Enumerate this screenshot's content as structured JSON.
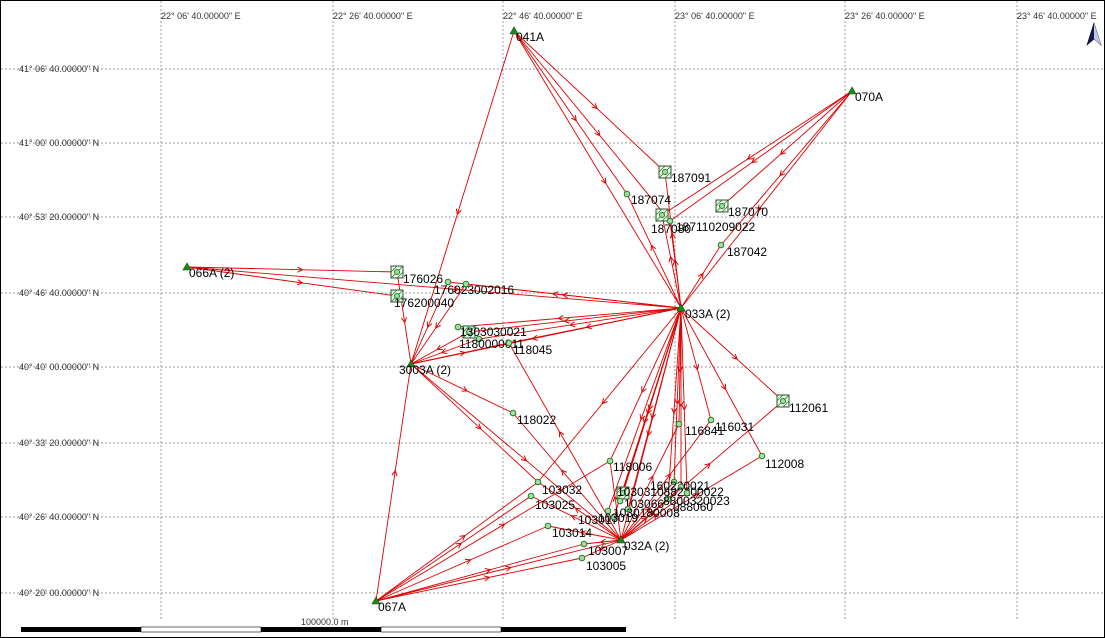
{
  "map": {
    "lon_labels": [
      "22° 06' 40.00000\" E",
      "22° 26' 40.00000\" E",
      "22° 46' 40.00000\" E",
      "23° 06' 40.00000\" E",
      "23° 26' 40.00000\" E",
      "23° 46' 40.00000\" E"
    ],
    "lat_labels": [
      "41° 06' 40.00000\" N",
      "41° 00' 00.00000\" N",
      "40° 53' 20.00000\" N",
      "40° 46' 40.00000\" N",
      "40° 40' 00.00000\" N",
      "40° 33' 20.00000\" N",
      "40° 26' 40.00000\" N",
      "40° 20' 00.00000\" N"
    ],
    "scale_label": "100000.0 m",
    "north_arrow": "north-arrow-icon",
    "colors": {
      "observation": "#e00000",
      "control": "#1c8a1c",
      "point": "#9fe09f",
      "grid": "#9a9a9a"
    }
  },
  "stations": [
    {
      "id": "041A",
      "label": "041A",
      "type": "control"
    },
    {
      "id": "070A",
      "label": "070A",
      "type": "control"
    },
    {
      "id": "066A",
      "label": "066A (2)",
      "type": "control"
    },
    {
      "id": "033A",
      "label": "033A (2)",
      "type": "control"
    },
    {
      "id": "031A",
      "label": "3003A (2)",
      "type": "control"
    },
    {
      "id": "032A",
      "label": "032A (2)",
      "type": "control"
    },
    {
      "id": "067A",
      "label": "067A",
      "type": "control"
    },
    {
      "id": "187091",
      "label": "187091",
      "type": "box"
    },
    {
      "id": "187070",
      "label": "187070",
      "type": "box"
    },
    {
      "id": "187074",
      "label": "187074",
      "type": "point"
    },
    {
      "id": "187080",
      "label": "187080",
      "type": "box"
    },
    {
      "id": "187022",
      "label": "187110209022",
      "type": "point"
    },
    {
      "id": "187042",
      "label": "187042",
      "type": "point"
    },
    {
      "id": "176026",
      "label": "176026",
      "type": "box"
    },
    {
      "id": "176200040",
      "label": "176200040",
      "type": "box"
    },
    {
      "id": "176020",
      "label": "176023002016",
      "type": "point"
    },
    {
      "id": "176016",
      "label": "",
      "type": "point"
    },
    {
      "id": "130021",
      "label": "1303030021",
      "type": "box"
    },
    {
      "id": "118011",
      "label": "1180000011",
      "type": "point"
    },
    {
      "id": "130x",
      "label": "",
      "type": "point"
    },
    {
      "id": "118045",
      "label": "118045",
      "type": "point"
    },
    {
      "id": "118022",
      "label": "118022",
      "type": "point"
    },
    {
      "id": "112061",
      "label": "112061",
      "type": "box"
    },
    {
      "id": "116841",
      "label": "116841",
      "type": "point"
    },
    {
      "id": "116031",
      "label": "116031",
      "type": "point"
    },
    {
      "id": "112008",
      "label": "112008",
      "type": "point"
    },
    {
      "id": "118006",
      "label": "118006",
      "type": "point"
    },
    {
      "id": "103031",
      "label": "103031",
      "type": "box"
    },
    {
      "id": "103032",
      "label": "103032",
      "type": "point"
    },
    {
      "id": "103025",
      "label": "103025",
      "type": "point"
    },
    {
      "id": "103066",
      "label": "103066",
      "type": "point"
    },
    {
      "id": "103017",
      "label": "103017",
      "type": "point"
    },
    {
      "id": "103019",
      "label": "103019",
      "type": "point"
    },
    {
      "id": "103008",
      "label": "1030180008",
      "type": "point"
    },
    {
      "id": "103014",
      "label": "103014",
      "type": "point"
    },
    {
      "id": "103007",
      "label": "103007",
      "type": "point"
    },
    {
      "id": "103005",
      "label": "103005",
      "type": "point"
    },
    {
      "id": "088060",
      "label": "088060",
      "type": "point"
    },
    {
      "id": "160021",
      "label": "160220021",
      "type": "point"
    },
    {
      "id": "088022",
      "label": "0882200022",
      "type": "point"
    },
    {
      "id": "088023",
      "label": "8800320023",
      "type": "point"
    }
  ],
  "observations": [
    [
      "041A",
      "187091"
    ],
    [
      "041A",
      "033A"
    ],
    [
      "041A",
      "187074"
    ],
    [
      "041A",
      "187022"
    ],
    [
      "041A",
      "031A"
    ],
    [
      "070A",
      "033A"
    ],
    [
      "070A",
      "187070"
    ],
    [
      "070A",
      "187080"
    ],
    [
      "070A",
      "187022"
    ],
    [
      "070A",
      "187042"
    ],
    [
      "066A",
      "176026"
    ],
    [
      "066A",
      "176200040"
    ],
    [
      "066A",
      "033A"
    ],
    [
      "176026",
      "031A"
    ],
    [
      "176020",
      "031A"
    ],
    [
      "176016",
      "031A"
    ],
    [
      "130021",
      "031A"
    ],
    [
      "118011",
      "031A"
    ],
    [
      "033A",
      "031A"
    ],
    [
      "033A",
      "176020"
    ],
    [
      "033A",
      "176016"
    ],
    [
      "033A",
      "130021"
    ],
    [
      "033A",
      "118011"
    ],
    [
      "033A",
      "118045"
    ],
    [
      "033A",
      "130x"
    ],
    [
      "033A",
      "187074"
    ],
    [
      "033A",
      "187080"
    ],
    [
      "033A",
      "187022"
    ],
    [
      "033A",
      "187042"
    ],
    [
      "033A",
      "187091"
    ],
    [
      "033A",
      "032A"
    ],
    [
      "033A",
      "112061"
    ],
    [
      "033A",
      "116841"
    ],
    [
      "033A",
      "116031"
    ],
    [
      "033A",
      "112008"
    ],
    [
      "033A",
      "118006"
    ],
    [
      "033A",
      "103031"
    ],
    [
      "033A",
      "103066"
    ],
    [
      "033A",
      "103017"
    ],
    [
      "033A",
      "103019"
    ],
    [
      "033A",
      "103008"
    ],
    [
      "033A",
      "088060"
    ],
    [
      "033A",
      "160021"
    ],
    [
      "033A",
      "088022"
    ],
    [
      "033A",
      "088023"
    ],
    [
      "033A",
      "103032"
    ],
    [
      "031A",
      "118022"
    ],
    [
      "031A",
      "032A"
    ],
    [
      "031A",
      "118045"
    ],
    [
      "031A",
      "103032"
    ],
    [
      "032A",
      "103032"
    ],
    [
      "032A",
      "103025"
    ],
    [
      "032A",
      "103014"
    ],
    [
      "032A",
      "103007"
    ],
    [
      "032A",
      "103005"
    ],
    [
      "032A",
      "118006"
    ],
    [
      "032A",
      "116841"
    ],
    [
      "032A",
      "116031"
    ],
    [
      "032A",
      "112061"
    ],
    [
      "032A",
      "112008"
    ],
    [
      "032A",
      "088060"
    ],
    [
      "032A",
      "160021"
    ],
    [
      "032A",
      "088022"
    ],
    [
      "032A",
      "088023"
    ],
    [
      "032A",
      "118022"
    ],
    [
      "032A",
      "118045"
    ],
    [
      "067A",
      "031A"
    ],
    [
      "067A",
      "032A"
    ],
    [
      "067A",
      "103032"
    ],
    [
      "067A",
      "103025"
    ],
    [
      "067A",
      "103014"
    ],
    [
      "067A",
      "103007"
    ],
    [
      "067A",
      "103005"
    ],
    [
      "067A",
      "118006"
    ]
  ]
}
